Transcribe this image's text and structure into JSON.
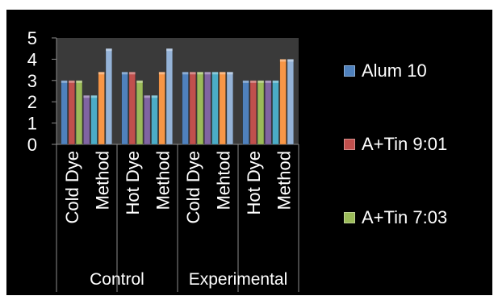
{
  "chart_data": {
    "type": "bar",
    "title": "",
    "xlabel": "",
    "ylabel": "",
    "ylim": [
      0,
      5
    ],
    "yticks": [
      0,
      1,
      2,
      3,
      4,
      5
    ],
    "grid": false,
    "legend_position": "right",
    "groups": [
      {
        "label": "Control",
        "categories": [
          "Cold Dye",
          "Method",
          "Hot Dye",
          "Method"
        ]
      },
      {
        "label": "Experimental",
        "categories": [
          "Cold Dye",
          "Mehtod",
          "Hot Dye",
          "Method"
        ]
      }
    ],
    "categories": [
      "Cold Dye",
      "Method",
      "Hot Dye",
      "Method",
      "Cold Dye",
      "Mehtod",
      "Hot Dye",
      "Method"
    ],
    "series": [
      {
        "name": "Alum 10",
        "color": "#4f81bd",
        "values": [
          3,
          3,
          3.4,
          3.4,
          3.4,
          3.4,
          3,
          3
        ]
      },
      {
        "name": "A+Tin 9:01",
        "color": "#c0504d",
        "values": [
          3,
          3,
          3.4,
          3.4,
          3.4,
          3.4,
          3,
          3
        ]
      },
      {
        "name": "A+Tin 7:03",
        "color": "#9bbb59",
        "values": [
          3,
          3,
          3,
          3,
          3.4,
          3.4,
          3,
          3
        ]
      },
      {
        "name": "",
        "color": "#8064a2",
        "values": [
          2.3,
          2.3,
          2.3,
          2.3,
          3.4,
          3.4,
          3,
          3
        ]
      },
      {
        "name": "",
        "color": "#4bacc6",
        "values": [
          2.3,
          2.3,
          2.3,
          2.3,
          3.4,
          3.4,
          3,
          3
        ]
      },
      {
        "name": "",
        "color": "#f79646",
        "values": [
          3.4,
          3.4,
          3.4,
          3.4,
          3.4,
          3.4,
          4,
          4
        ]
      },
      {
        "name": "",
        "color": "#95b3d7",
        "values": [
          4.5,
          4.5,
          4.5,
          4.5,
          3.4,
          3.4,
          4,
          4
        ]
      }
    ]
  }
}
